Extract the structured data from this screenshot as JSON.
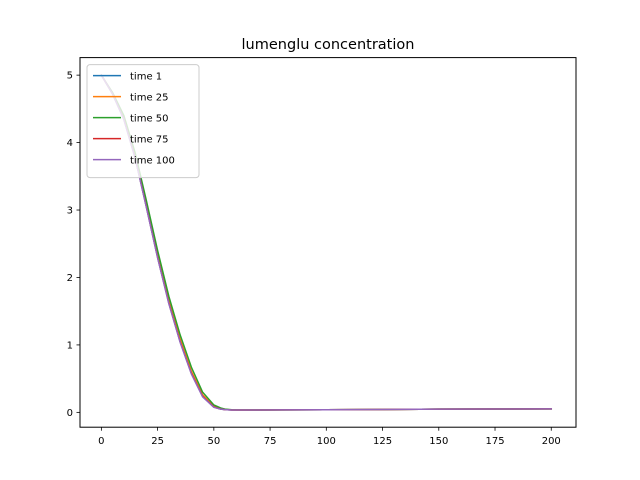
{
  "chart_data": {
    "type": "line",
    "title": "lumenglu concentration",
    "xlabel": "",
    "ylabel": "",
    "xlim": [
      -9.5,
      211
    ],
    "ylim": [
      -0.22,
      5.26
    ],
    "xticks": [
      0,
      25,
      50,
      75,
      100,
      125,
      150,
      175,
      200
    ],
    "yticks": [
      0,
      1,
      2,
      3,
      4,
      5
    ],
    "grid": false,
    "legend_position": "top-left",
    "series": [
      {
        "name": "time 1",
        "color": "#1f77b4",
        "x": [
          0,
          5,
          10,
          15,
          20,
          25,
          30,
          35,
          40,
          45,
          50,
          53,
          55,
          58,
          60,
          70,
          80,
          100,
          125,
          150,
          175,
          200
        ],
        "y": [
          5.0,
          4.72,
          4.35,
          3.78,
          3.05,
          2.3,
          1.62,
          1.05,
          0.58,
          0.24,
          0.08,
          0.05,
          0.04,
          0.035,
          0.035,
          0.035,
          0.036,
          0.038,
          0.043,
          0.048,
          0.05,
          0.052
        ]
      },
      {
        "name": "time 25",
        "color": "#ff7f0e",
        "x": [
          0,
          5,
          10,
          15,
          20,
          25,
          30,
          35,
          40,
          45,
          50,
          53,
          55,
          58,
          60,
          70,
          80,
          100,
          125,
          150,
          175,
          200
        ],
        "y": [
          5.0,
          4.73,
          4.37,
          3.81,
          3.09,
          2.34,
          1.66,
          1.09,
          0.61,
          0.26,
          0.09,
          0.055,
          0.042,
          0.036,
          0.035,
          0.035,
          0.036,
          0.038,
          0.043,
          0.048,
          0.05,
          0.052
        ]
      },
      {
        "name": "time 50",
        "color": "#2ca02c",
        "x": [
          0,
          5,
          10,
          15,
          20,
          25,
          30,
          35,
          40,
          45,
          50,
          53,
          55,
          58,
          60,
          70,
          80,
          100,
          125,
          150,
          175,
          200
        ],
        "y": [
          5.0,
          4.74,
          4.4,
          3.85,
          3.14,
          2.4,
          1.72,
          1.15,
          0.67,
          0.3,
          0.11,
          0.065,
          0.048,
          0.038,
          0.036,
          0.035,
          0.036,
          0.038,
          0.043,
          0.048,
          0.05,
          0.052
        ]
      },
      {
        "name": "time 75",
        "color": "#d62728",
        "x": [
          0,
          5,
          10,
          15,
          20,
          25,
          30,
          35,
          40,
          45,
          50,
          53,
          55,
          58,
          60,
          70,
          80,
          100,
          125,
          150,
          175,
          200
        ],
        "y": [
          5.0,
          4.72,
          4.35,
          3.78,
          3.05,
          2.3,
          1.62,
          1.05,
          0.58,
          0.24,
          0.08,
          0.05,
          0.04,
          0.035,
          0.035,
          0.035,
          0.036,
          0.038,
          0.043,
          0.048,
          0.05,
          0.052
        ]
      },
      {
        "name": "time 100",
        "color": "#9467bd",
        "x": [
          0,
          5,
          10,
          15,
          20,
          25,
          30,
          35,
          40,
          45,
          50,
          53,
          55,
          58,
          60,
          70,
          80,
          100,
          125,
          150,
          175,
          200
        ],
        "y": [
          5.0,
          4.72,
          4.34,
          3.77,
          3.04,
          2.29,
          1.61,
          1.04,
          0.57,
          0.23,
          0.075,
          0.048,
          0.04,
          0.035,
          0.035,
          0.035,
          0.036,
          0.038,
          0.043,
          0.048,
          0.05,
          0.052
        ]
      }
    ]
  }
}
